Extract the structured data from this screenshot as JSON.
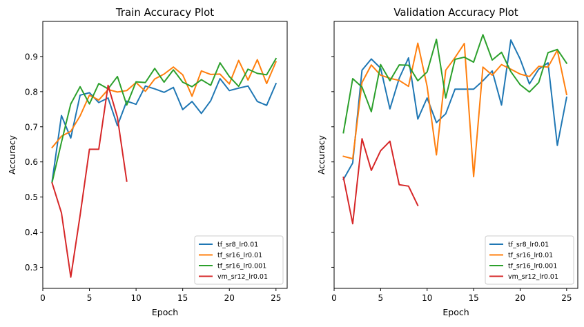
{
  "chart_data": [
    {
      "type": "line",
      "title": "Train Accuracy Plot",
      "xlabel": "Epoch",
      "ylabel": "Accuracy",
      "xlim": [
        0,
        26.2
      ],
      "ylim": [
        0.24,
        1.0
      ],
      "xticks": [
        0,
        5,
        10,
        15,
        20,
        25
      ],
      "yticks": [
        0.3,
        0.4,
        0.5,
        0.6,
        0.7,
        0.8,
        0.9
      ],
      "grid": false,
      "legend_position": "lower-right",
      "series": [
        {
          "name": "tf_sr8_lr0.01",
          "color": "#1f77b4",
          "x": [
            1,
            2,
            3,
            4,
            5,
            6,
            7,
            8,
            9,
            10,
            11,
            12,
            13,
            14,
            15,
            16,
            17,
            18,
            19,
            20,
            21,
            22,
            23,
            24,
            25
          ],
          "y": [
            0.545,
            0.732,
            0.668,
            0.79,
            0.797,
            0.769,
            0.782,
            0.703,
            0.773,
            0.764,
            0.816,
            0.808,
            0.798,
            0.812,
            0.749,
            0.772,
            0.738,
            0.774,
            0.837,
            0.803,
            0.81,
            0.816,
            0.772,
            0.761,
            0.823
          ]
        },
        {
          "name": "tf_sr16_lr0.01",
          "color": "#ff7f0e",
          "x": [
            1,
            2,
            3,
            4,
            5,
            6,
            7,
            8,
            9,
            10,
            11,
            12,
            13,
            14,
            15,
            16,
            17,
            18,
            19,
            20,
            21,
            22,
            23,
            24,
            25
          ],
          "y": [
            0.641,
            0.673,
            0.687,
            0.731,
            0.79,
            0.776,
            0.806,
            0.799,
            0.803,
            0.826,
            0.801,
            0.836,
            0.85,
            0.87,
            0.848,
            0.787,
            0.859,
            0.849,
            0.85,
            0.822,
            0.889,
            0.833,
            0.891,
            0.823,
            0.885
          ]
        },
        {
          "name": "tf_sr16_lr0.001",
          "color": "#2ca02c",
          "x": [
            1,
            2,
            3,
            4,
            5,
            6,
            7,
            8,
            9,
            10,
            11,
            12,
            13,
            14,
            15,
            16,
            17,
            18,
            19,
            20,
            21,
            22,
            23,
            24,
            25
          ],
          "y": [
            0.542,
            0.656,
            0.765,
            0.814,
            0.765,
            0.823,
            0.808,
            0.843,
            0.762,
            0.828,
            0.826,
            0.866,
            0.827,
            0.862,
            0.827,
            0.814,
            0.834,
            0.818,
            0.882,
            0.843,
            0.815,
            0.864,
            0.852,
            0.848,
            0.894
          ]
        },
        {
          "name": "vm_sr12_lr0.01",
          "color": "#d62728",
          "x": [
            1,
            2,
            3,
            4,
            5,
            6,
            7,
            8,
            9
          ],
          "y": [
            0.54,
            0.455,
            0.272,
            0.448,
            0.636,
            0.636,
            0.818,
            0.727,
            0.545
          ]
        }
      ]
    },
    {
      "type": "line",
      "title": "Validation Accuracy Plot",
      "xlabel": "Epoch",
      "ylabel": "Accuracy",
      "xlim": [
        0,
        26.2
      ],
      "ylim": [
        0.24,
        1.0
      ],
      "xticks": [
        0,
        5,
        10,
        15,
        20,
        25
      ],
      "yticks": [
        0.3,
        0.4,
        0.5,
        0.6,
        0.7,
        0.8,
        0.9
      ],
      "grid": false,
      "legend_position": "lower-right",
      "series": [
        {
          "name": "tf_sr8_lr0.01",
          "color": "#1f77b4",
          "x": [
            1,
            2,
            3,
            4,
            5,
            6,
            7,
            8,
            9,
            10,
            11,
            12,
            13,
            14,
            15,
            16,
            17,
            18,
            19,
            20,
            21,
            22,
            23,
            24,
            25
          ],
          "y": [
            0.55,
            0.597,
            0.861,
            0.893,
            0.867,
            0.751,
            0.838,
            0.896,
            0.722,
            0.782,
            0.712,
            0.737,
            0.807,
            0.807,
            0.807,
            0.831,
            0.859,
            0.762,
            0.947,
            0.893,
            0.822,
            0.864,
            0.882,
            0.647,
            0.784
          ]
        },
        {
          "name": "tf_sr16_lr0.01",
          "color": "#ff7f0e",
          "x": [
            1,
            2,
            3,
            4,
            5,
            6,
            7,
            8,
            9,
            10,
            11,
            12,
            13,
            14,
            15,
            16,
            17,
            18,
            19,
            20,
            21,
            22,
            23,
            24,
            25
          ],
          "y": [
            0.616,
            0.609,
            0.826,
            0.876,
            0.847,
            0.838,
            0.832,
            0.815,
            0.938,
            0.815,
            0.62,
            0.861,
            0.897,
            0.937,
            0.558,
            0.87,
            0.847,
            0.877,
            0.864,
            0.85,
            0.843,
            0.872,
            0.87,
            0.918,
            0.792
          ]
        },
        {
          "name": "tf_sr16_lr0.001",
          "color": "#2ca02c",
          "x": [
            1,
            2,
            3,
            4,
            5,
            6,
            7,
            8,
            9,
            10,
            11,
            12,
            13,
            14,
            15,
            16,
            17,
            18,
            19,
            20,
            21,
            22,
            23,
            24,
            25
          ],
          "y": [
            0.683,
            0.837,
            0.813,
            0.743,
            0.877,
            0.831,
            0.876,
            0.875,
            0.831,
            0.856,
            0.949,
            0.782,
            0.892,
            0.898,
            0.884,
            0.962,
            0.89,
            0.912,
            0.857,
            0.82,
            0.799,
            0.826,
            0.911,
            0.92,
            0.881
          ]
        },
        {
          "name": "vm_sr12_lr0.01",
          "color": "#d62728",
          "x": [
            1,
            2,
            3,
            4,
            5,
            6,
            7,
            8,
            9
          ],
          "y": [
            0.556,
            0.424,
            0.666,
            0.576,
            0.632,
            0.659,
            0.535,
            0.531,
            0.476
          ]
        }
      ]
    }
  ]
}
